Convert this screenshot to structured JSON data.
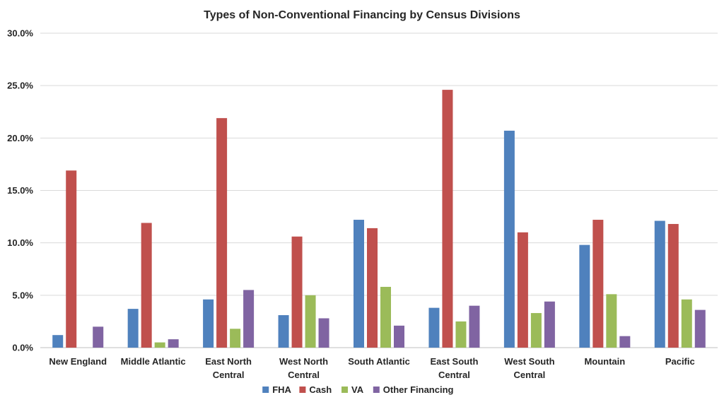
{
  "chart_data": {
    "type": "bar",
    "title": "Types of Non-Conventional Financing by Census Divisions",
    "xlabel": "",
    "ylabel": "",
    "ylim": [
      0,
      30
    ],
    "yticks": [
      "0.0%",
      "5.0%",
      "10.0%",
      "15.0%",
      "20.0%",
      "25.0%",
      "30.0%"
    ],
    "grid": true,
    "legend_position": "bottom",
    "categories": [
      [
        "New England"
      ],
      [
        "Middle Atlantic"
      ],
      [
        "East North",
        "Central"
      ],
      [
        "West North",
        "Central"
      ],
      [
        "South Atlantic"
      ],
      [
        "East South",
        "Central"
      ],
      [
        "West South",
        "Central"
      ],
      [
        "Mountain"
      ],
      [
        "Pacific"
      ]
    ],
    "series": [
      {
        "name": "FHA",
        "color": "#4f81bd",
        "values": [
          1.2,
          3.7,
          4.6,
          3.1,
          12.2,
          3.8,
          20.7,
          9.8,
          12.1
        ]
      },
      {
        "name": "Cash",
        "color": "#c0504d",
        "values": [
          16.9,
          11.9,
          21.9,
          10.6,
          11.4,
          24.6,
          11.0,
          12.2,
          11.8
        ]
      },
      {
        "name": "VA",
        "color": "#9bbb59",
        "values": [
          0.0,
          0.5,
          1.8,
          5.0,
          5.8,
          2.5,
          3.3,
          5.1,
          4.6
        ]
      },
      {
        "name": "Other Financing",
        "color": "#8064a2",
        "values": [
          2.0,
          0.8,
          5.5,
          2.8,
          2.1,
          4.0,
          4.4,
          1.1,
          3.6
        ]
      }
    ]
  }
}
